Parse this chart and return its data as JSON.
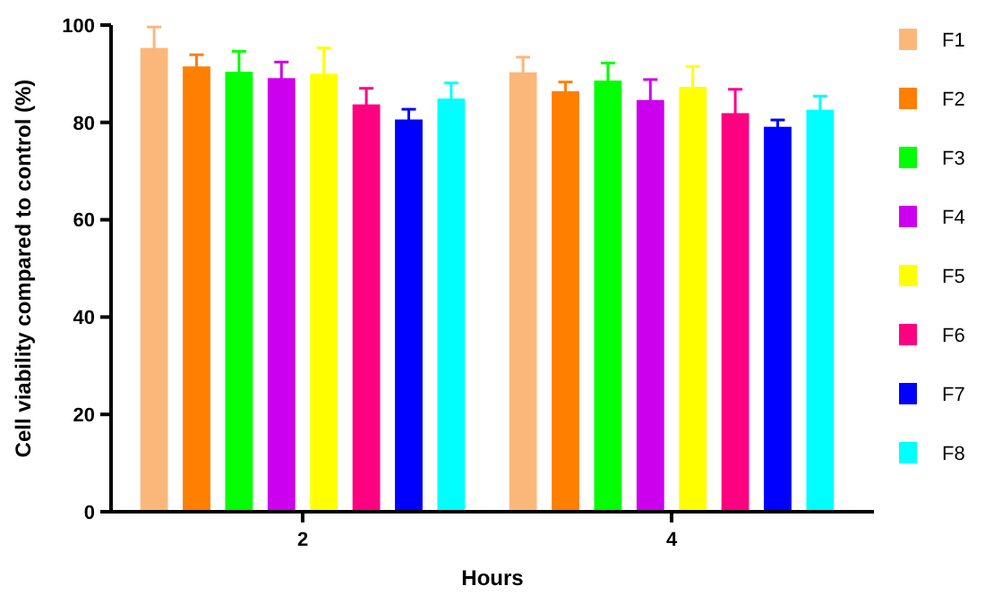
{
  "chart_data": {
    "type": "bar",
    "xlabel": "Hours",
    "ylabel": "Cell viability compared to control (%)",
    "categories": [
      "2",
      "4"
    ],
    "ylim": [
      0,
      100
    ],
    "yticks": [
      0,
      20,
      40,
      60,
      80,
      100
    ],
    "grid": false,
    "legend": "right",
    "series": [
      {
        "name": "F1",
        "color": "#fbb77a",
        "values": [
          95.3,
          90.3
        ],
        "errors": [
          4.3,
          3.1
        ]
      },
      {
        "name": "F2",
        "color": "#ff7f00",
        "values": [
          91.5,
          86.4
        ],
        "errors": [
          2.4,
          1.9
        ]
      },
      {
        "name": "F3",
        "color": "#00ff00",
        "values": [
          90.4,
          88.6
        ],
        "errors": [
          4.2,
          3.6
        ]
      },
      {
        "name": "F4",
        "color": "#cc00ee",
        "values": [
          89.1,
          84.6
        ],
        "errors": [
          3.3,
          4.2
        ]
      },
      {
        "name": "F5",
        "color": "#ffff00",
        "values": [
          90,
          87.3
        ],
        "errors": [
          5.3,
          4.2
        ]
      },
      {
        "name": "F6",
        "color": "#ff0080",
        "values": [
          83.7,
          81.9
        ],
        "errors": [
          3.3,
          4.9
        ]
      },
      {
        "name": "F7",
        "color": "#0000ff",
        "values": [
          80.6,
          79.1
        ],
        "errors": [
          2.1,
          1.4
        ]
      },
      {
        "name": "F8",
        "color": "#00ffff",
        "values": [
          84.9,
          82.6
        ],
        "errors": [
          3.2,
          2.8
        ]
      }
    ]
  }
}
